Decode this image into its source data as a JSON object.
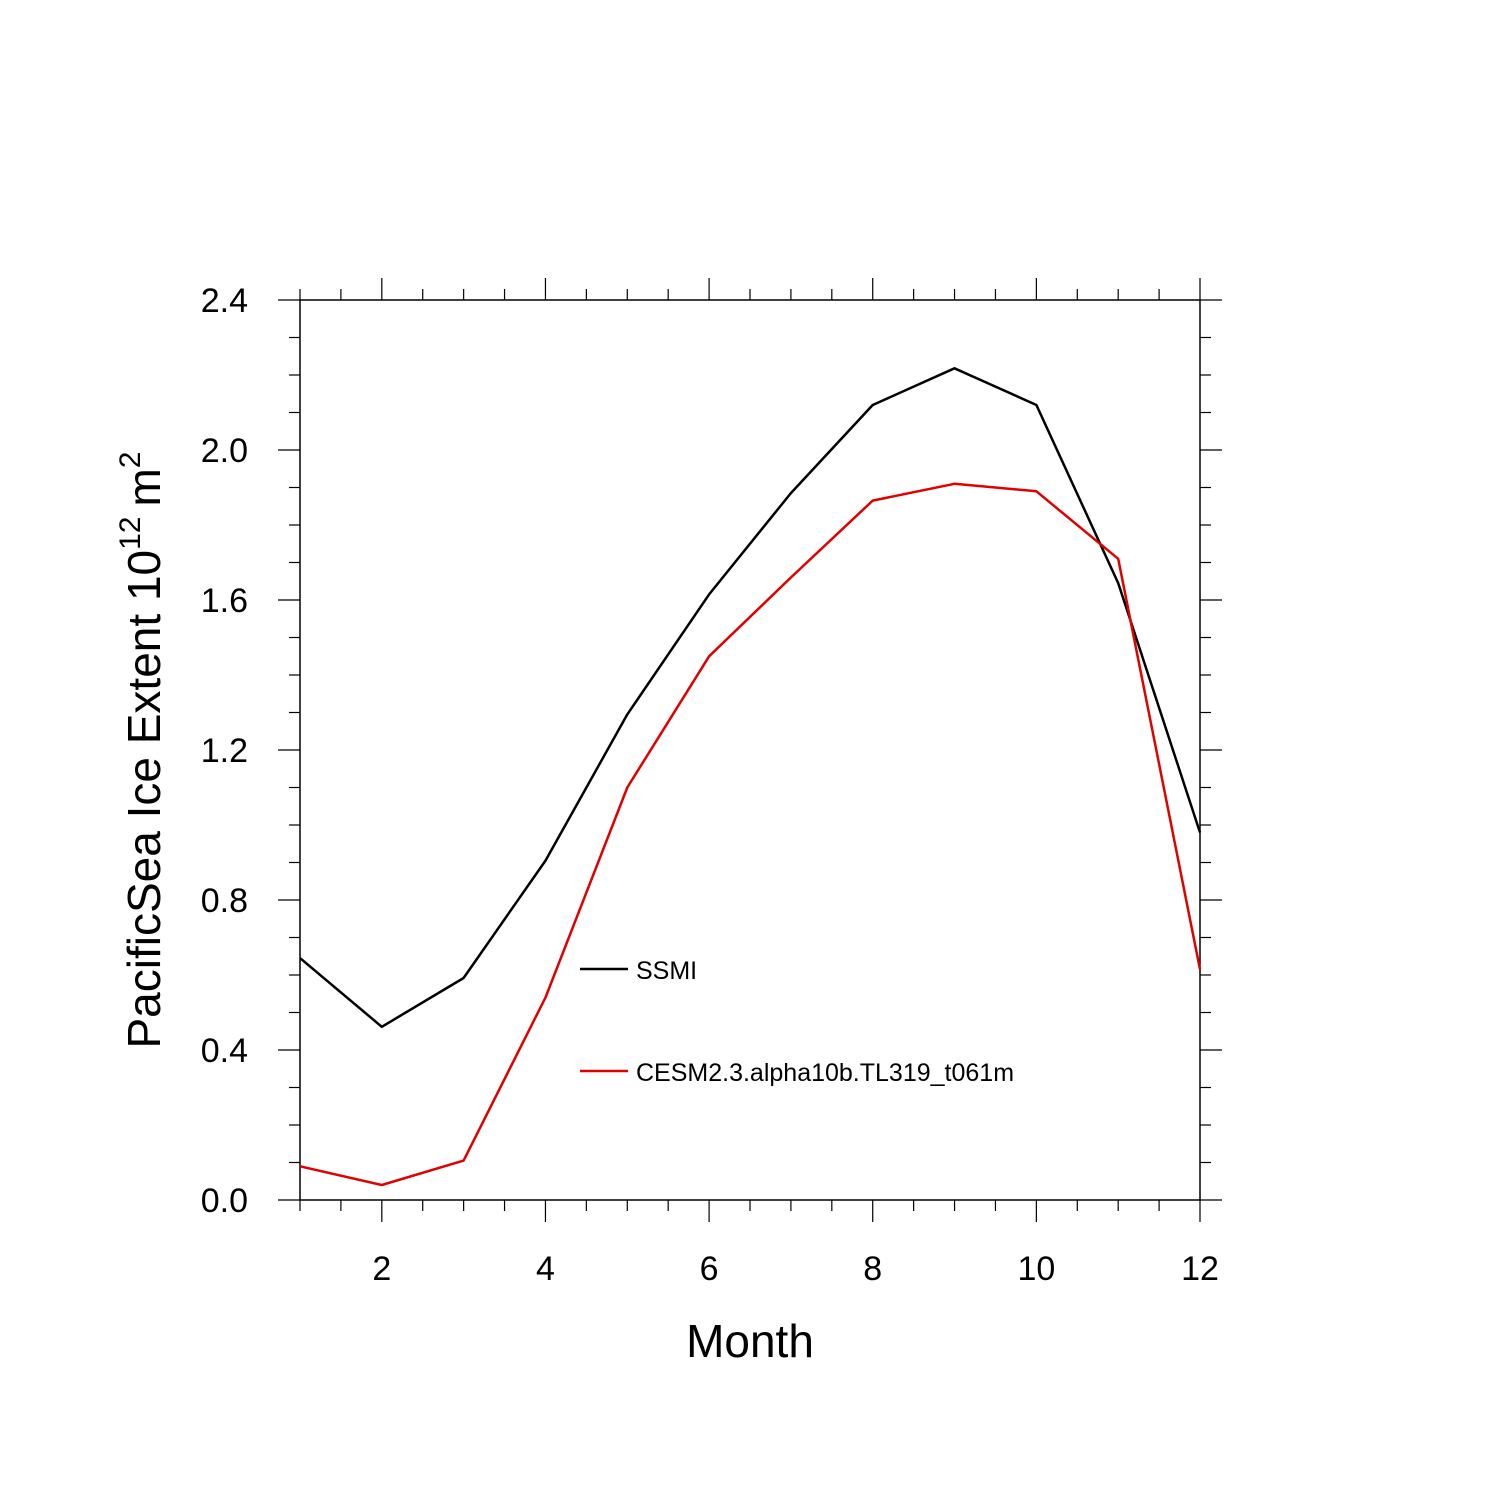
{
  "chart_data": {
    "type": "line",
    "xlabel": "Month",
    "ylabel_main": "PacificSea Ice Extent 10",
    "ylabel_exp": "12",
    "ylabel_unit": "m",
    "ylabel_unit_exp": "2",
    "xlim": [
      1,
      12
    ],
    "ylim": [
      0,
      2.4
    ],
    "x": [
      1,
      2,
      3,
      4,
      5,
      6,
      7,
      8,
      9,
      10,
      11,
      12
    ],
    "xticks": [
      2,
      4,
      6,
      8,
      10,
      12
    ],
    "xtick_labels": [
      "2",
      "4",
      "6",
      "8",
      "10",
      "12"
    ],
    "yticks": [
      0,
      0.4,
      0.8,
      1.2,
      1.6,
      2.0,
      2.4
    ],
    "ytick_labels": [
      "0.0",
      "0.4",
      "0.8",
      "1.2",
      "1.6",
      "2.0",
      "2.4"
    ],
    "grid": false,
    "legend_position": "center",
    "series": [
      {
        "name": "SSMI",
        "color": "#000000",
        "values": [
          0.645,
          0.462,
          0.592,
          0.905,
          1.295,
          1.615,
          1.885,
          2.12,
          2.218,
          2.12,
          1.645,
          0.98
        ]
      },
      {
        "name": "CESM2.3.alpha10b.TL319_t061m",
        "color": "#e00000",
        "values": [
          0.09,
          0.04,
          0.105,
          0.54,
          1.1,
          1.45,
          1.66,
          1.865,
          1.91,
          1.89,
          1.71,
          0.615
        ]
      }
    ]
  }
}
